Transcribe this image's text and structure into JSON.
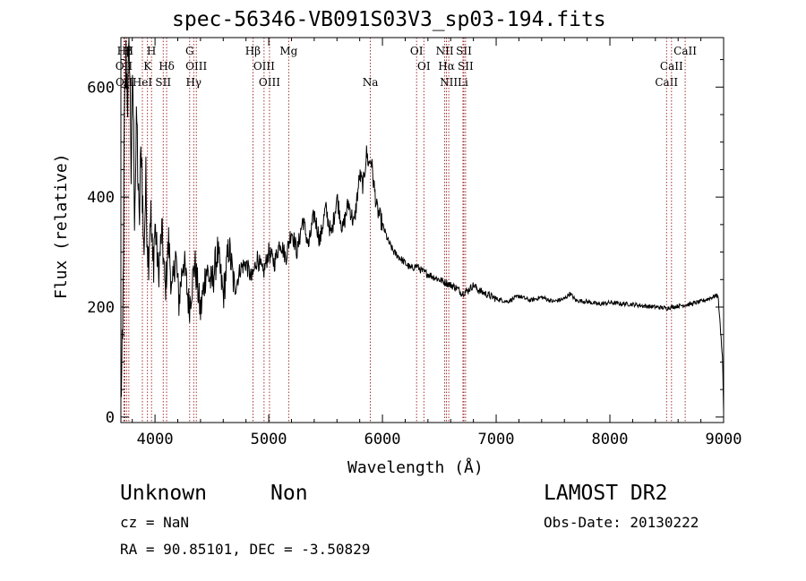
{
  "chart_data": {
    "type": "line",
    "title": "spec-56346-VB091S03V3_sp03-194.fits",
    "xlabel": "Wavelength (Å)",
    "ylabel": "Flux (relative)",
    "xlim": [
      3700,
      9000
    ],
    "ylim": [
      -10,
      690
    ],
    "x_ticks": [
      4000,
      5000,
      6000,
      7000,
      8000,
      9000
    ],
    "y_ticks": [
      0,
      200,
      400,
      600
    ],
    "grid": false,
    "line_color": "#000000",
    "marker_color": "#8b0000",
    "series": [
      {
        "x": [
          3700,
          3715,
          3730,
          3745,
          3760,
          3775,
          3790,
          3805,
          3820,
          3840,
          3860,
          3880,
          3900,
          3920,
          3940,
          3960,
          3980,
          4000,
          4030,
          4060,
          4090,
          4120,
          4150,
          4180,
          4210,
          4250,
          4300,
          4350,
          4400,
          4450,
          4500,
          4550,
          4600,
          4650,
          4700,
          4750,
          4800,
          4850,
          4900,
          4950,
          5000,
          5050,
          5100,
          5150,
          5200,
          5250,
          5300,
          5350,
          5400,
          5450,
          5500,
          5550,
          5600,
          5650,
          5700,
          5750,
          5800,
          5830,
          5860,
          5880,
          5900,
          5920,
          5950,
          6000,
          6050,
          6100,
          6150,
          6200,
          6250,
          6300,
          6350,
          6400,
          6450,
          6500,
          6550,
          6600,
          6650,
          6700,
          6750,
          6800,
          6850,
          6900,
          6950,
          7000,
          7100,
          7200,
          7300,
          7400,
          7500,
          7600,
          7650,
          7700,
          7800,
          7900,
          8000,
          8100,
          8200,
          8300,
          8400,
          8500,
          8600,
          8700,
          8800,
          8900,
          8950,
          8990,
          9000
        ],
        "y": [
          40,
          120,
          520,
          650,
          580,
          680,
          450,
          620,
          380,
          540,
          340,
          500,
          300,
          420,
          290,
          380,
          270,
          350,
          260,
          340,
          230,
          320,
          220,
          300,
          210,
          290,
          200,
          280,
          190,
          270,
          240,
          300,
          220,
          310,
          230,
          270,
          280,
          250,
          290,
          260,
          300,
          280,
          320,
          290,
          340,
          300,
          360,
          310,
          370,
          320,
          380,
          330,
          400,
          340,
          390,
          350,
          440,
          420,
          480,
          460,
          470,
          430,
          380,
          350,
          320,
          300,
          290,
          280,
          270,
          275,
          265,
          260,
          255,
          250,
          245,
          240,
          235,
          225,
          230,
          240,
          230,
          225,
          220,
          215,
          210,
          220,
          212,
          218,
          210,
          215,
          225,
          212,
          210,
          205,
          208,
          206,
          205,
          202,
          200,
          198,
          202,
          205,
          210,
          218,
          222,
          110,
          10
        ]
      }
    ],
    "line_markers": [
      {
        "name": "Hβ",
        "x": 3734,
        "row": 0
      },
      {
        "name": "H",
        "x": 3750,
        "row": 0
      },
      {
        "name": "H",
        "x": 3770,
        "row": 0
      },
      {
        "name": "OII",
        "x": 3727,
        "row": 1
      },
      {
        "name": "OII",
        "x": 3729,
        "row": 2
      },
      {
        "name": "K",
        "x": 3934,
        "row": 1
      },
      {
        "name": "H",
        "x": 3969,
        "row": 0
      },
      {
        "name": "HeI",
        "x": 3889,
        "row": 2
      },
      {
        "name": "Hδ",
        "x": 4102,
        "row": 1
      },
      {
        "name": "SII",
        "x": 4072,
        "row": 2
      },
      {
        "name": "G",
        "x": 4305,
        "row": 0
      },
      {
        "name": "OIII",
        "x": 4363,
        "row": 1
      },
      {
        "name": "Hγ",
        "x": 4340,
        "row": 2
      },
      {
        "name": "Hβ",
        "x": 4861,
        "row": 0
      },
      {
        "name": "OIII",
        "x": 4959,
        "row": 1
      },
      {
        "name": "OIII",
        "x": 5007,
        "row": 2
      },
      {
        "name": "Mg",
        "x": 5175,
        "row": 0
      },
      {
        "name": "Na",
        "x": 5894,
        "row": 2
      },
      {
        "name": "OI",
        "x": 6300,
        "row": 0
      },
      {
        "name": "OI",
        "x": 6364,
        "row": 1
      },
      {
        "name": "NII",
        "x": 6548,
        "row": 0
      },
      {
        "name": "NII",
        "x": 6583,
        "row": 2
      },
      {
        "name": "Hα",
        "x": 6563,
        "row": 1
      },
      {
        "name": "SII",
        "x": 6716,
        "row": 0
      },
      {
        "name": "SII",
        "x": 6731,
        "row": 1
      },
      {
        "name": "Li",
        "x": 6708,
        "row": 2
      },
      {
        "name": "CaII",
        "x": 8498,
        "row": 2
      },
      {
        "name": "CaII",
        "x": 8542,
        "row": 1
      },
      {
        "name": "CaII",
        "x": 8662,
        "row": 0
      }
    ]
  },
  "info": {
    "classification": "Unknown",
    "subclass": "Non",
    "survey": "LAMOST DR2",
    "redshift": "cz = NaN",
    "obs_date": "Obs-Date: 20130222",
    "coords": "RA =  90.85101, DEC =  -3.50829"
  }
}
